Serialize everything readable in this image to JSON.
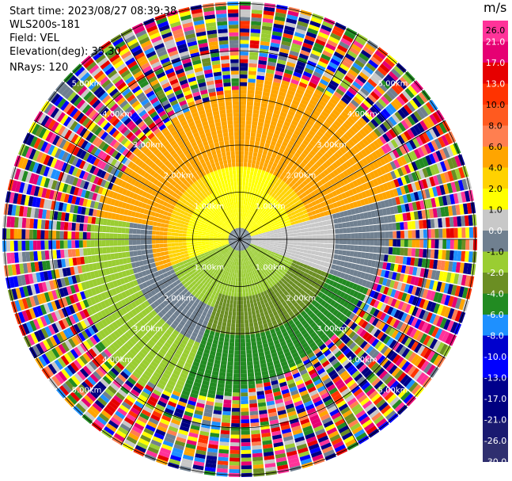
{
  "header": {
    "start_time": "Start time: 2023/08/27 08:39:38",
    "instrument": "WLS200s-181",
    "field": "Field: VEL",
    "elevation": "Elevation(deg): 35.30",
    "nrays": "NRays: 120"
  },
  "range_ring_labels": [
    "1.00km",
    "2.00km",
    "3.00km",
    "4.00km",
    "5.00km",
    "6.00km",
    "7.00km"
  ],
  "colorbar": {
    "unit": "m/s",
    "ticks": [
      "26.0",
      "21.0",
      "17.0",
      "13.0",
      "10.0",
      "8.0",
      "6.0",
      "4.0",
      "2.0",
      "1.0",
      "0.0",
      "-1.0",
      "-2.0",
      "-4.0",
      "-6.0",
      "-8.0",
      "-10.0",
      "-13.0",
      "-17.0",
      "-21.0",
      "-26.0",
      "-30.0"
    ],
    "colors": [
      "#ff3399",
      "#e60073",
      "#e60000",
      "#ff3300",
      "#ff5a1f",
      "#ff7f50",
      "#ffa500",
      "#ffd200",
      "#ffff00",
      "#c8c8c8",
      "#708090",
      "#9acd32",
      "#6b8e23",
      "#228b22",
      "#1e90ff",
      "#0000cd",
      "#0000ff",
      "#00008b",
      "#000080",
      "#191970",
      "#2f2f6f"
    ]
  }
}
